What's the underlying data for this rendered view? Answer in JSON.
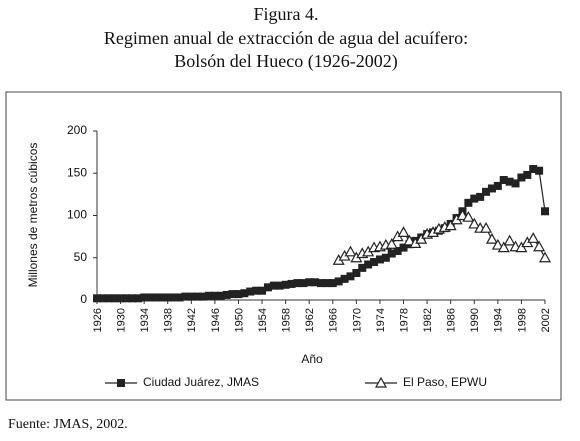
{
  "chart_data": {
    "type": "line",
    "title": "Figura 4.",
    "subtitle": "Regimen anual de extracción de agua del acuífero:",
    "subtitle2": "Bolsón del Hueco (1926-2002)",
    "x_label": "Año",
    "y_label": "Millones de metros cúbicos",
    "source": "Fuente: JMAS, 2002.",
    "x": [
      1926,
      1927,
      1928,
      1929,
      1930,
      1931,
      1932,
      1933,
      1934,
      1935,
      1936,
      1937,
      1938,
      1939,
      1940,
      1941,
      1942,
      1943,
      1944,
      1945,
      1946,
      1947,
      1948,
      1949,
      1950,
      1951,
      1952,
      1953,
      1954,
      1955,
      1956,
      1957,
      1958,
      1959,
      1960,
      1961,
      1962,
      1963,
      1964,
      1965,
      1966,
      1967,
      1968,
      1969,
      1970,
      1971,
      1972,
      1973,
      1974,
      1975,
      1976,
      1977,
      1978,
      1979,
      1980,
      1981,
      1982,
      1983,
      1984,
      1985,
      1986,
      1987,
      1988,
      1989,
      1990,
      1991,
      1992,
      1993,
      1994,
      1995,
      1996,
      1997,
      1998,
      1999,
      2000,
      2001,
      2002
    ],
    "series": [
      {
        "name": "Ciudad Juárez, JMAS",
        "color": "#222222",
        "marker": "square",
        "values": [
          2,
          2,
          2,
          2,
          2,
          2,
          2,
          2,
          3,
          3,
          3,
          3,
          3,
          3,
          3,
          4,
          4,
          4,
          4,
          5,
          5,
          5,
          6,
          7,
          7,
          8,
          10,
          11,
          11,
          15,
          17,
          17,
          18,
          19,
          20,
          20,
          21,
          21,
          20,
          20,
          20,
          22,
          25,
          28,
          32,
          38,
          42,
          45,
          48,
          50,
          55,
          58,
          62,
          66,
          70,
          74,
          78,
          80,
          82,
          85,
          90,
          97,
          105,
          115,
          120,
          122,
          128,
          132,
          135,
          142,
          140,
          138,
          145,
          148,
          155,
          153,
          105
        ]
      },
      {
        "name": "El Paso, EPWU",
        "color": "#222222",
        "marker": "triangle",
        "values": [
          null,
          null,
          null,
          null,
          null,
          null,
          null,
          null,
          null,
          null,
          null,
          null,
          null,
          null,
          null,
          null,
          null,
          null,
          null,
          null,
          null,
          null,
          null,
          null,
          null,
          null,
          null,
          null,
          null,
          null,
          null,
          null,
          null,
          null,
          null,
          null,
          null,
          null,
          null,
          null,
          null,
          47,
          52,
          57,
          50,
          55,
          57,
          62,
          63,
          65,
          66,
          75,
          80,
          70,
          67,
          72,
          78,
          80,
          84,
          86,
          88,
          95,
          100,
          98,
          90,
          85,
          85,
          72,
          65,
          62,
          70,
          63,
          62,
          68,
          73,
          63,
          50
        ]
      }
    ],
    "xlim": [
      1926,
      2002
    ],
    "xticks": [
      1926,
      1930,
      1934,
      1938,
      1942,
      1946,
      1950,
      1954,
      1958,
      1962,
      1966,
      1970,
      1974,
      1978,
      1982,
      1986,
      1990,
      1994,
      1998,
      2002
    ],
    "ylim": [
      0,
      200
    ],
    "yticks": [
      0,
      50,
      100,
      150,
      200
    ]
  }
}
